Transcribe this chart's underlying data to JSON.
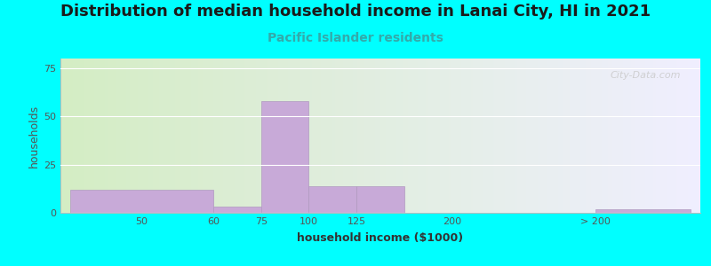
{
  "title": "Distribution of median household income in Lanai City, HI in 2021",
  "subtitle": "Pacific Islander residents",
  "xlabel": "household income ($1000)",
  "ylabel": "households",
  "background_outer": "#00FFFF",
  "bar_color": "#c8aad8",
  "bar_edge_color": "#b09ac0",
  "ylim": [
    0,
    80
  ],
  "yticks": [
    0,
    25,
    50,
    75
  ],
  "watermark": "City-Data.com",
  "title_fontsize": 13,
  "subtitle_fontsize": 10,
  "axis_label_fontsize": 9,
  "tick_fontsize": 8,
  "gradient_left": "#d4edc4",
  "gradient_right": "#f0efff",
  "bar_lefts": [
    0,
    3,
    4,
    5,
    6,
    9,
    11
  ],
  "bar_widths": [
    3,
    1,
    1,
    1,
    1,
    1,
    2
  ],
  "bar_heights": [
    12,
    3,
    58,
    14,
    14,
    0,
    2
  ],
  "xtick_positions": [
    1.5,
    3,
    4,
    5,
    6,
    8,
    11
  ],
  "xtick_labels": [
    "50",
    "60",
    "75",
    "100",
    "125",
    "200",
    "> 200"
  ],
  "xlim": [
    -0.2,
    13.2
  ]
}
